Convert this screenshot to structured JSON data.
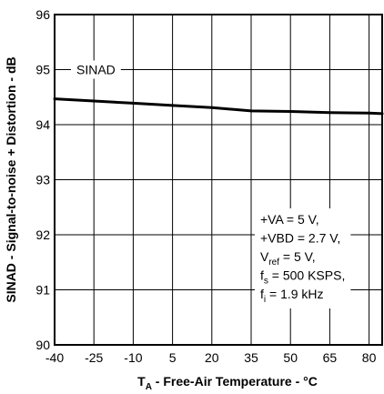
{
  "chart_data": {
    "type": "line",
    "title": "",
    "xlabel": {
      "main": "T",
      "sub": "A",
      "rest": " - Free-Air Temperature - °C"
    },
    "ylabel": "SINAD - Signal-to-noise + Distortion - dB",
    "xlim": [
      -40,
      85
    ],
    "ylim": [
      90,
      96
    ],
    "x_ticks": [
      -40,
      -25,
      -10,
      5,
      20,
      35,
      50,
      65,
      80
    ],
    "y_ticks": [
      90,
      91,
      92,
      93,
      94,
      95,
      96
    ],
    "grid": true,
    "series": [
      {
        "name": "SINAD",
        "x": [
          -40,
          -25,
          -10,
          5,
          20,
          35,
          50,
          65,
          80,
          85
        ],
        "y": [
          94.47,
          94.43,
          94.39,
          94.35,
          94.31,
          94.25,
          94.24,
          94.22,
          94.21,
          94.2
        ]
      }
    ],
    "annotation": [
      {
        "main": "+VA = 5 V,"
      },
      {
        "main": "+VBD = 2.7 V,"
      },
      {
        "main": "V",
        "sub": "ref",
        "rest": " = 5 V,"
      },
      {
        "main": "f",
        "sub": "s",
        "rest": " = 500 KSPS,"
      },
      {
        "main": "f",
        "sub": "i",
        "rest": " = 1.9 kHz"
      }
    ]
  }
}
